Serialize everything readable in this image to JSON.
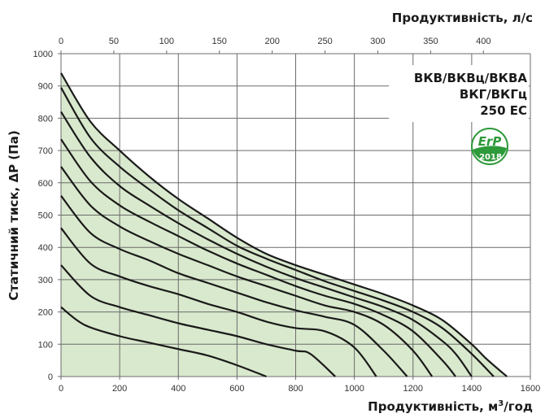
{
  "chart_data": {
    "type": "line",
    "title": "ВКВ/ВКВц/ВКВА ВКГ/ВКГц 250 ЕС",
    "model_lines": [
      "ВКВ/ВКВц/ВКВА",
      "ВКГ/ВКГц",
      "250 ЕС"
    ],
    "badge": {
      "top": "ErP",
      "bottom": "2018",
      "color": "#2e9a3a"
    },
    "xlabel": "Продуктивність, м³/год",
    "xlabel_parts": {
      "pre": "Продуктивність, м",
      "sup": "3",
      "post": "/год"
    },
    "x2label": "Продуктивність, л/с",
    "ylabel": "Статичний тиск, ΔР (Па)",
    "xlim": [
      0,
      1600
    ],
    "ylim": [
      0,
      1000
    ],
    "x2lim": [
      0,
      444.4
    ],
    "xticks": [
      0,
      200,
      400,
      600,
      800,
      1000,
      1200,
      1400,
      1600
    ],
    "x2ticks": [
      0,
      50,
      100,
      150,
      200,
      250,
      300,
      350,
      400
    ],
    "yticks": [
      0,
      100,
      200,
      300,
      400,
      500,
      600,
      700,
      800,
      900,
      1000
    ],
    "grid": true,
    "fill_color": "#d9e9cd",
    "line_color": "#1a1a1a",
    "series": [
      {
        "name": "curve-1",
        "points": [
          [
            0,
            940
          ],
          [
            100,
            790
          ],
          [
            200,
            700
          ],
          [
            300,
            620
          ],
          [
            400,
            550
          ],
          [
            500,
            490
          ],
          [
            600,
            430
          ],
          [
            700,
            380
          ],
          [
            800,
            345
          ],
          [
            900,
            315
          ],
          [
            1000,
            285
          ],
          [
            1100,
            255
          ],
          [
            1200,
            220
          ],
          [
            1300,
            175
          ],
          [
            1400,
            100
          ],
          [
            1450,
            55
          ],
          [
            1520,
            0
          ]
        ]
      },
      {
        "name": "curve-2",
        "points": [
          [
            0,
            895
          ],
          [
            100,
            740
          ],
          [
            200,
            650
          ],
          [
            300,
            580
          ],
          [
            400,
            515
          ],
          [
            500,
            460
          ],
          [
            600,
            405
          ],
          [
            700,
            365
          ],
          [
            800,
            330
          ],
          [
            900,
            295
          ],
          [
            1000,
            265
          ],
          [
            1100,
            235
          ],
          [
            1200,
            200
          ],
          [
            1300,
            150
          ],
          [
            1400,
            70
          ],
          [
            1475,
            0
          ]
        ]
      },
      {
        "name": "curve-3",
        "points": [
          [
            0,
            820
          ],
          [
            100,
            680
          ],
          [
            200,
            590
          ],
          [
            300,
            530
          ],
          [
            400,
            475
          ],
          [
            500,
            425
          ],
          [
            600,
            380
          ],
          [
            700,
            340
          ],
          [
            800,
            305
          ],
          [
            900,
            275
          ],
          [
            1000,
            245
          ],
          [
            1100,
            215
          ],
          [
            1200,
            175
          ],
          [
            1300,
            110
          ],
          [
            1350,
            65
          ],
          [
            1400,
            0
          ]
        ]
      },
      {
        "name": "curve-4",
        "points": [
          [
            0,
            735
          ],
          [
            100,
            605
          ],
          [
            200,
            530
          ],
          [
            300,
            480
          ],
          [
            400,
            435
          ],
          [
            500,
            390
          ],
          [
            600,
            350
          ],
          [
            700,
            315
          ],
          [
            800,
            280
          ],
          [
            900,
            250
          ],
          [
            1000,
            225
          ],
          [
            1100,
            190
          ],
          [
            1200,
            140
          ],
          [
            1300,
            50
          ],
          [
            1345,
            0
          ]
        ]
      },
      {
        "name": "curve-5",
        "points": [
          [
            0,
            650
          ],
          [
            100,
            530
          ],
          [
            200,
            465
          ],
          [
            300,
            420
          ],
          [
            400,
            380
          ],
          [
            500,
            345
          ],
          [
            600,
            310
          ],
          [
            700,
            280
          ],
          [
            800,
            250
          ],
          [
            900,
            220
          ],
          [
            1000,
            200
          ],
          [
            1100,
            160
          ],
          [
            1200,
            80
          ],
          [
            1265,
            0
          ]
        ]
      },
      {
        "name": "curve-6",
        "points": [
          [
            0,
            560
          ],
          [
            100,
            445
          ],
          [
            200,
            395
          ],
          [
            300,
            360
          ],
          [
            400,
            320
          ],
          [
            500,
            290
          ],
          [
            600,
            260
          ],
          [
            700,
            230
          ],
          [
            800,
            205
          ],
          [
            900,
            185
          ],
          [
            1000,
            160
          ],
          [
            1100,
            80
          ],
          [
            1180,
            0
          ]
        ]
      },
      {
        "name": "curve-7",
        "points": [
          [
            0,
            460
          ],
          [
            100,
            350
          ],
          [
            200,
            310
          ],
          [
            300,
            280
          ],
          [
            400,
            255
          ],
          [
            500,
            225
          ],
          [
            600,
            200
          ],
          [
            700,
            170
          ],
          [
            800,
            150
          ],
          [
            900,
            140
          ],
          [
            1000,
            90
          ],
          [
            1075,
            0
          ]
        ]
      },
      {
        "name": "curve-8",
        "points": [
          [
            0,
            345
          ],
          [
            100,
            250
          ],
          [
            200,
            215
          ],
          [
            300,
            190
          ],
          [
            400,
            165
          ],
          [
            500,
            145
          ],
          [
            600,
            125
          ],
          [
            700,
            100
          ],
          [
            800,
            80
          ],
          [
            850,
            70
          ],
          [
            935,
            0
          ]
        ]
      },
      {
        "name": "curve-9",
        "points": [
          [
            0,
            215
          ],
          [
            80,
            160
          ],
          [
            200,
            125
          ],
          [
            300,
            105
          ],
          [
            400,
            85
          ],
          [
            500,
            65
          ],
          [
            600,
            35
          ],
          [
            700,
            0
          ]
        ]
      }
    ]
  }
}
